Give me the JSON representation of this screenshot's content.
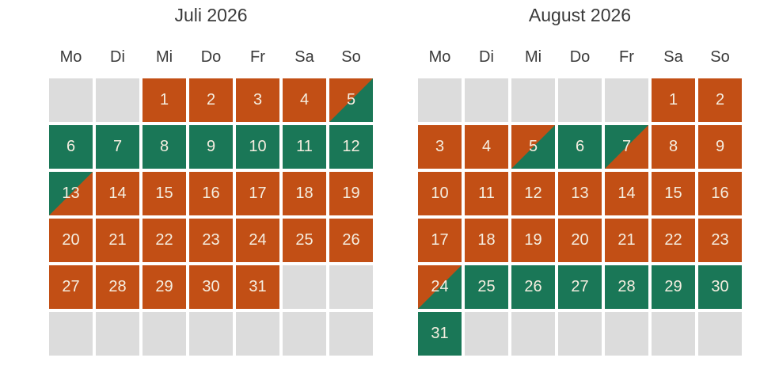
{
  "colors": {
    "booked": "#c24f15",
    "available": "#1a7757",
    "empty_day": "#dcdcdc",
    "day_number": "#f5eee0",
    "heading": "#3a3a3a",
    "page_background": "#ffffff"
  },
  "months": [
    {
      "title": "Juli 2026",
      "weekdays": [
        "Mo",
        "Di",
        "Mi",
        "Do",
        "Fr",
        "Sa",
        "So"
      ],
      "weeks": [
        [
          {
            "day": "",
            "state": "blank"
          },
          {
            "day": "",
            "state": "blank"
          },
          {
            "day": "1",
            "state": "booked"
          },
          {
            "day": "2",
            "state": "booked"
          },
          {
            "day": "3",
            "state": "booked"
          },
          {
            "day": "4",
            "state": "booked"
          },
          {
            "day": "5",
            "state": "booked_to_available"
          }
        ],
        [
          {
            "day": "6",
            "state": "available"
          },
          {
            "day": "7",
            "state": "available"
          },
          {
            "day": "8",
            "state": "available"
          },
          {
            "day": "9",
            "state": "available"
          },
          {
            "day": "10",
            "state": "available"
          },
          {
            "day": "11",
            "state": "available"
          },
          {
            "day": "12",
            "state": "available"
          }
        ],
        [
          {
            "day": "13",
            "state": "available_to_booked"
          },
          {
            "day": "14",
            "state": "booked"
          },
          {
            "day": "15",
            "state": "booked"
          },
          {
            "day": "16",
            "state": "booked"
          },
          {
            "day": "17",
            "state": "booked"
          },
          {
            "day": "18",
            "state": "booked"
          },
          {
            "day": "19",
            "state": "booked"
          }
        ],
        [
          {
            "day": "20",
            "state": "booked"
          },
          {
            "day": "21",
            "state": "booked"
          },
          {
            "day": "22",
            "state": "booked"
          },
          {
            "day": "23",
            "state": "booked"
          },
          {
            "day": "24",
            "state": "booked"
          },
          {
            "day": "25",
            "state": "booked"
          },
          {
            "day": "26",
            "state": "booked"
          }
        ],
        [
          {
            "day": "27",
            "state": "booked"
          },
          {
            "day": "28",
            "state": "booked"
          },
          {
            "day": "29",
            "state": "booked"
          },
          {
            "day": "30",
            "state": "booked"
          },
          {
            "day": "31",
            "state": "booked"
          },
          {
            "day": "",
            "state": "blank"
          },
          {
            "day": "",
            "state": "blank"
          }
        ],
        [
          {
            "day": "",
            "state": "blank"
          },
          {
            "day": "",
            "state": "blank"
          },
          {
            "day": "",
            "state": "blank"
          },
          {
            "day": "",
            "state": "blank"
          },
          {
            "day": "",
            "state": "blank"
          },
          {
            "day": "",
            "state": "blank"
          },
          {
            "day": "",
            "state": "blank"
          }
        ]
      ]
    },
    {
      "title": "August 2026",
      "weekdays": [
        "Mo",
        "Di",
        "Mi",
        "Do",
        "Fr",
        "Sa",
        "So"
      ],
      "weeks": [
        [
          {
            "day": "",
            "state": "blank"
          },
          {
            "day": "",
            "state": "blank"
          },
          {
            "day": "",
            "state": "blank"
          },
          {
            "day": "",
            "state": "blank"
          },
          {
            "day": "",
            "state": "blank"
          },
          {
            "day": "1",
            "state": "booked"
          },
          {
            "day": "2",
            "state": "booked"
          }
        ],
        [
          {
            "day": "3",
            "state": "booked"
          },
          {
            "day": "4",
            "state": "booked"
          },
          {
            "day": "5",
            "state": "booked_to_available"
          },
          {
            "day": "6",
            "state": "available"
          },
          {
            "day": "7",
            "state": "available_to_booked"
          },
          {
            "day": "8",
            "state": "booked"
          },
          {
            "day": "9",
            "state": "booked"
          }
        ],
        [
          {
            "day": "10",
            "state": "booked"
          },
          {
            "day": "11",
            "state": "booked"
          },
          {
            "day": "12",
            "state": "booked"
          },
          {
            "day": "13",
            "state": "booked"
          },
          {
            "day": "14",
            "state": "booked"
          },
          {
            "day": "15",
            "state": "booked"
          },
          {
            "day": "16",
            "state": "booked"
          }
        ],
        [
          {
            "day": "17",
            "state": "booked"
          },
          {
            "day": "18",
            "state": "booked"
          },
          {
            "day": "19",
            "state": "booked"
          },
          {
            "day": "20",
            "state": "booked"
          },
          {
            "day": "21",
            "state": "booked"
          },
          {
            "day": "22",
            "state": "booked"
          },
          {
            "day": "23",
            "state": "booked"
          }
        ],
        [
          {
            "day": "24",
            "state": "booked_to_available"
          },
          {
            "day": "25",
            "state": "available"
          },
          {
            "day": "26",
            "state": "available"
          },
          {
            "day": "27",
            "state": "available"
          },
          {
            "day": "28",
            "state": "available"
          },
          {
            "day": "29",
            "state": "available"
          },
          {
            "day": "30",
            "state": "available"
          }
        ],
        [
          {
            "day": "31",
            "state": "available"
          },
          {
            "day": "",
            "state": "blank"
          },
          {
            "day": "",
            "state": "blank"
          },
          {
            "day": "",
            "state": "blank"
          },
          {
            "day": "",
            "state": "blank"
          },
          {
            "day": "",
            "state": "blank"
          },
          {
            "day": "",
            "state": "blank"
          }
        ]
      ]
    }
  ]
}
